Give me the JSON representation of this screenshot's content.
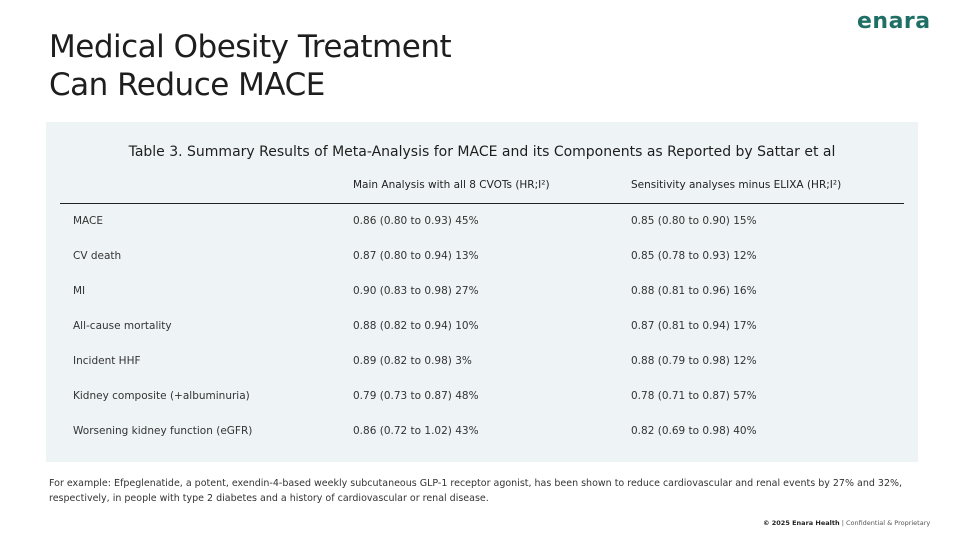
{
  "title_line1": "Medical Obesity Treatment",
  "title_line2": "Can Reduce MACE",
  "logo": "enara",
  "table": {
    "caption": "Table 3. Summary Results of Meta-Analysis for MACE and its Components as Reported by Sattar et al",
    "headers": [
      "",
      "Main Analysis with all 8 CVOTs (HR;I²)",
      "Sensitivity analyses minus ELIXA (HR;I²)"
    ],
    "rows": [
      [
        "MACE",
        "0.86 (0.80 to 0.93) 45%",
        "0.85 (0.80 to 0.90) 15%"
      ],
      [
        "CV death",
        "0.87 (0.80 to 0.94) 13%",
        "0.85 (0.78 to 0.93) 12%"
      ],
      [
        "MI",
        "0.90 (0.83 to 0.98) 27%",
        "0.88 (0.81 to 0.96) 16%"
      ],
      [
        "All-cause mortality",
        "0.88 (0.82 to 0.94) 10%",
        "0.87 (0.81 to 0.94) 17%"
      ],
      [
        "Incident HHF",
        "0.89 (0.82 to 0.98) 3%",
        "0.88 (0.79 to 0.98) 12%"
      ],
      [
        "Kidney composite (+albuminuria)",
        "0.79 (0.73 to 0.87) 48%",
        "0.78 (0.71 to 0.87) 57%"
      ],
      [
        "Worsening kidney function (eGFR)",
        "0.86 (0.72 to 1.02) 43%",
        "0.82 (0.69 to 0.98) 40%"
      ]
    ]
  },
  "note": "For example: Efpeglenatide, a potent, exendin-4-based weekly subcutaneous GLP-1 receptor agonist, has been shown to reduce cardiovascular and renal events by 27% and 32%, respectively, in people with type 2 diabetes and a history of cardiovascular or renal disease.",
  "footer": {
    "company": "© 2025 Enara Health",
    "rest": " | Confidential & Proprietary"
  }
}
